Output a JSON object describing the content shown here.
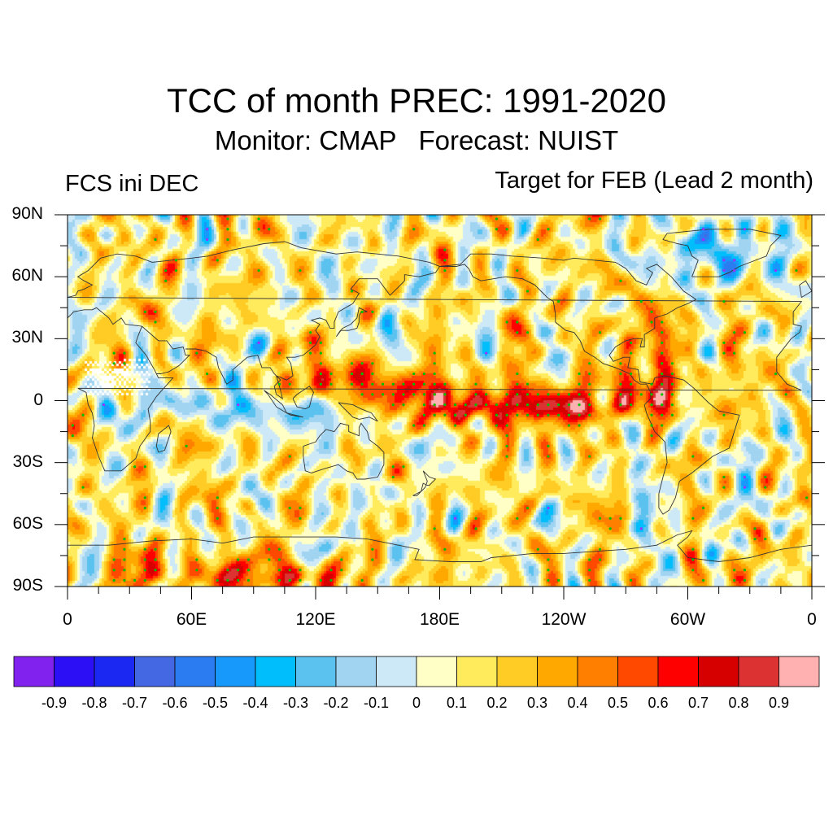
{
  "chart_data": {
    "type": "heatmap",
    "title": "TCC of month PREC: 1991-2020",
    "subtitle": "Monitor: CMAP   Forecast: NUIST",
    "left_string": "FCS ini DEC",
    "right_string": "Target for FEB (Lead 2 month)",
    "projection": "cylindrical-equidistant global map",
    "x_axis": {
      "range": [
        0,
        360
      ],
      "ticks": [
        0,
        60,
        120,
        180,
        240,
        300,
        360
      ],
      "tick_labels": [
        "0",
        "60E",
        "120E",
        "180E",
        "120W",
        "60W",
        "0"
      ],
      "minor_tick_step_deg": 15
    },
    "y_axis": {
      "range": [
        -90,
        90
      ],
      "ticks": [
        90,
        60,
        30,
        0,
        -30,
        -60,
        -90
      ],
      "tick_labels": [
        "90N",
        "60N",
        "30N",
        "0",
        "30S",
        "60S",
        "90S"
      ],
      "minor_tick_step_deg": 15
    },
    "colorbar": {
      "orientation": "horizontal",
      "placement": "bottom",
      "levels": [
        -0.9,
        -0.8,
        -0.7,
        -0.6,
        -0.5,
        -0.4,
        -0.3,
        -0.2,
        -0.1,
        0,
        0.1,
        0.2,
        0.3,
        0.4,
        0.5,
        0.6,
        0.7,
        0.8,
        0.9
      ],
      "level_labels": [
        "-0.9",
        "-0.8",
        "-0.7",
        "-0.6",
        "-0.5",
        "-0.4",
        "-0.3",
        "-0.2",
        "-0.1",
        "0",
        "0.1",
        "0.2",
        "0.3",
        "0.4",
        "0.5",
        "0.6",
        "0.7",
        "0.8",
        "0.9"
      ],
      "colors": [
        "#8122ee",
        "#2c0ff5",
        "#1b28f2",
        "#4467e3",
        "#2b7cf0",
        "#1798fb",
        "#00bdfc",
        "#5bc2f0",
        "#a0d4f1",
        "#cde9f8",
        "#ffffc6",
        "#ffeb5c",
        "#ffcc25",
        "#ffa800",
        "#ff7f00",
        "#ff4800",
        "#ff0000",
        "#d70000",
        "#dc3232",
        "#ffb0b0"
      ]
    },
    "significance_markers": {
      "positive_color": "#00c000",
      "negative_color": "#9b30ff",
      "description": "dots mark statistically significant TCC"
    },
    "features": [
      {
        "name": "equatorial Pacific maximum",
        "lon_range": [
          160,
          280
        ],
        "lat_range": [
          -10,
          5
        ],
        "value_range": [
          0.6,
          0.9
        ]
      },
      {
        "name": "western Pacific / Philippine Sea maximum",
        "lon_range": [
          110,
          160
        ],
        "lat_range": [
          0,
          20
        ],
        "value_range": [
          0.5,
          0.8
        ]
      },
      {
        "name": "tropical Africa missing data",
        "lon_range": [
          5,
          40
        ],
        "lat_range": [
          5,
          20
        ],
        "value": null
      },
      {
        "name": "Indian Ocean / Maritime Continent negative",
        "lon_range": [
          60,
          130
        ],
        "lat_range": [
          -10,
          5
        ],
        "value_range": [
          -0.5,
          -0.2
        ]
      },
      {
        "name": "Antarctic coastal positive band",
        "lon_range": [
          0,
          120
        ],
        "lat_range": [
          -90,
          -65
        ],
        "value_range": [
          0.2,
          0.6
        ]
      },
      {
        "name": "Greenland negative",
        "lon_range": [
          300,
          345
        ],
        "lat_range": [
          60,
          85
        ],
        "value_range": [
          -0.5,
          -0.2
        ]
      }
    ]
  }
}
